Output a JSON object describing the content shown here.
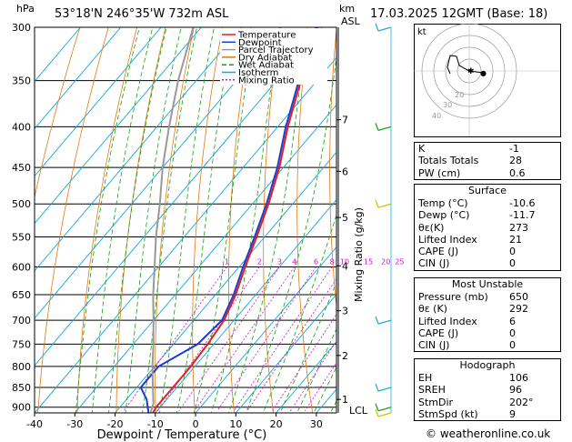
{
  "header": {
    "hpa_unit": "hPa",
    "location": "53°18'N  246°35'W  732m  ASL",
    "km_unit": "km",
    "asl_unit": "ASL",
    "datetime": "17.03.2025  12GMT  (Base: 18)"
  },
  "axes": {
    "xlabel": "Dewpoint / Temperature (°C)",
    "mixing_ratio_label": "Mixing Ratio (g/kg)",
    "lcl_label": "LCL"
  },
  "legend": [
    "Temperature",
    "Dewpoint",
    "Parcel Trajectory",
    "Dry Adiabat",
    "Wet Adiabat",
    "Isotherm",
    "Mixing Ratio"
  ],
  "colors": {
    "temperature": "#e02020",
    "dewpoint": "#1e3ad0",
    "parcel": "#999999",
    "dry_adiabat": "#e07a10",
    "wet_adiabat": "#12a012",
    "isotherm": "#10a8e0",
    "mixing_ratio": "#d010d0"
  },
  "chart_data": {
    "type": "line",
    "title": "",
    "xlabel": "Dewpoint / Temperature (°C)",
    "ylabel": "hPa",
    "pressure_levels": [
      300,
      350,
      400,
      450,
      500,
      550,
      600,
      650,
      700,
      750,
      800,
      850,
      900
    ],
    "x_ticks": [
      -40,
      -30,
      -20,
      -10,
      0,
      10,
      20,
      30
    ],
    "xlim": [
      -40,
      35
    ],
    "km_ticks": [
      {
        "km": 7,
        "p": 392
      },
      {
        "km": 6,
        "p": 455
      },
      {
        "km": 5,
        "p": 520
      },
      {
        "km": 4,
        "p": 598
      },
      {
        "km": 3,
        "p": 681
      },
      {
        "km": 2,
        "p": 775
      },
      {
        "km": 1,
        "p": 880
      }
    ],
    "mixing_ratio_labels": [
      "1",
      "2",
      "3",
      "4",
      "6",
      "8",
      "10",
      "15",
      "20",
      "25"
    ],
    "mixing_ratio_values": [
      1,
      2,
      3,
      4,
      6,
      8,
      10,
      15,
      20,
      25
    ],
    "series": [
      {
        "name": "Temperature",
        "points": [
          [
            300,
            -51
          ],
          [
            350,
            -44
          ],
          [
            400,
            -37.5
          ],
          [
            450,
            -31
          ],
          [
            500,
            -26
          ],
          [
            550,
            -22
          ],
          [
            600,
            -18.5
          ],
          [
            650,
            -15
          ],
          [
            700,
            -12.5
          ],
          [
            750,
            -11.5
          ],
          [
            800,
            -11
          ],
          [
            850,
            -11
          ],
          [
            900,
            -11
          ],
          [
            915,
            -10.6
          ]
        ]
      },
      {
        "name": "Dewpoint",
        "points": [
          [
            300,
            -51.5
          ],
          [
            350,
            -44.5
          ],
          [
            400,
            -38
          ],
          [
            450,
            -31.5
          ],
          [
            500,
            -26.5
          ],
          [
            550,
            -22.5
          ],
          [
            600,
            -19
          ],
          [
            650,
            -15.5
          ],
          [
            700,
            -13
          ],
          [
            750,
            -14
          ],
          [
            800,
            -19
          ],
          [
            850,
            -19
          ],
          [
            880,
            -15
          ],
          [
            915,
            -11.7
          ]
        ]
      },
      {
        "name": "Parcel Trajectory",
        "points": [
          [
            915,
            -11.2
          ],
          [
            890,
            -12.5
          ],
          [
            850,
            -16
          ],
          [
            800,
            -20.5
          ],
          [
            750,
            -25
          ],
          [
            700,
            -30
          ],
          [
            650,
            -35.5
          ],
          [
            600,
            -41
          ],
          [
            550,
            -47
          ],
          [
            500,
            -53
          ],
          [
            450,
            -60
          ],
          [
            400,
            -67
          ],
          [
            350,
            -74.5
          ],
          [
            300,
            -82
          ]
        ]
      }
    ]
  },
  "hodograph": {
    "label": "kt",
    "ring_labels": [
      "20",
      "30",
      "40"
    ]
  },
  "indices": [
    {
      "label": "K",
      "value": "-1"
    },
    {
      "label": "Totals Totals",
      "value": "28"
    },
    {
      "label": "PW (cm)",
      "value": "0.6"
    }
  ],
  "surface": {
    "title": "Surface",
    "rows": [
      {
        "label": "Temp (°C)",
        "value": "-10.6"
      },
      {
        "label": "Dewp (°C)",
        "value": "-11.7"
      },
      {
        "label": "θε(K)",
        "value": "273"
      },
      {
        "label": "Lifted Index",
        "value": "21"
      },
      {
        "label": "CAPE (J)",
        "value": "0"
      },
      {
        "label": "CIN (J)",
        "value": "0"
      }
    ]
  },
  "most_unstable": {
    "title": "Most Unstable",
    "rows": [
      {
        "label": "Pressure (mb)",
        "value": "650"
      },
      {
        "label": "θε (K)",
        "value": "292"
      },
      {
        "label": "Lifted Index",
        "value": "6"
      },
      {
        "label": "CAPE (J)",
        "value": "0"
      },
      {
        "label": "CIN (J)",
        "value": "0"
      }
    ]
  },
  "hodograph_table": {
    "title": "Hodograph",
    "rows": [
      {
        "label": "EH",
        "value": "106"
      },
      {
        "label": "SREH",
        "value": "96"
      },
      {
        "label": "StmDir",
        "value": "202°"
      },
      {
        "label": "StmSpd (kt)",
        "value": "9"
      }
    ]
  },
  "watermark": "© weatheronline.co.uk"
}
